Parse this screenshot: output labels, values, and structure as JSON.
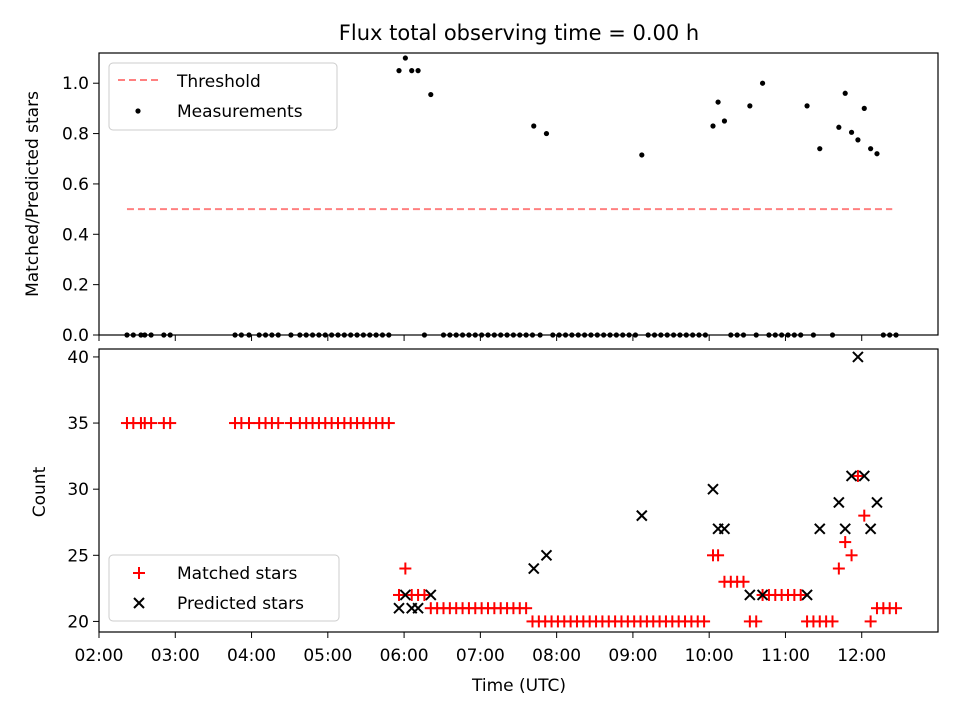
{
  "chart_data": [
    {
      "type": "scatter",
      "title": "Flux total observing time = 0.00 h",
      "ylabel": "Matched/Predicted stars",
      "xlabel": "",
      "xlim": [
        "02:00",
        "13:00"
      ],
      "ylim": [
        0,
        1.12
      ],
      "y_ticks": [
        "0.0",
        "0.2",
        "0.4",
        "0.6",
        "0.8",
        "1.0"
      ],
      "legend_position": "upper-left",
      "series": [
        {
          "name": "Threshold",
          "style": "dashed-line",
          "color": "#ff8080",
          "points": [
            [
              "02:22",
              0.5
            ],
            [
              "12:24",
              0.5
            ]
          ]
        },
        {
          "name": "Measurements",
          "style": "dot",
          "color": "#000000",
          "points": [
            [
              "02:22",
              0
            ],
            [
              "02:27",
              0
            ],
            [
              "02:33",
              0
            ],
            [
              "02:36",
              0
            ],
            [
              "02:41",
              0
            ],
            [
              "02:51",
              0
            ],
            [
              "02:56",
              0
            ],
            [
              "03:47",
              0
            ],
            [
              "03:52",
              0
            ],
            [
              "03:58",
              0
            ],
            [
              "04:06",
              0
            ],
            [
              "04:11",
              0
            ],
            [
              "04:16",
              0
            ],
            [
              "04:21",
              0
            ],
            [
              "04:31",
              0
            ],
            [
              "04:38",
              0
            ],
            [
              "04:43",
              0
            ],
            [
              "04:48",
              0
            ],
            [
              "04:53",
              0
            ],
            [
              "04:58",
              0
            ],
            [
              "05:03",
              0
            ],
            [
              "05:08",
              0
            ],
            [
              "05:13",
              0
            ],
            [
              "05:18",
              0
            ],
            [
              "05:23",
              0
            ],
            [
              "05:28",
              0
            ],
            [
              "05:33",
              0
            ],
            [
              "05:38",
              0
            ],
            [
              "05:43",
              0
            ],
            [
              "05:48",
              0
            ],
            [
              "05:56",
              1.05
            ],
            [
              "06:01",
              1.1
            ],
            [
              "06:06",
              1.05
            ],
            [
              "06:11",
              1.05
            ],
            [
              "06:21",
              0.955
            ],
            [
              "06:16",
              0
            ],
            [
              "06:31",
              0
            ],
            [
              "06:36",
              0
            ],
            [
              "06:41",
              0
            ],
            [
              "06:46",
              0
            ],
            [
              "06:51",
              0
            ],
            [
              "06:56",
              0
            ],
            [
              "07:01",
              0
            ],
            [
              "07:06",
              0
            ],
            [
              "07:11",
              0
            ],
            [
              "07:16",
              0
            ],
            [
              "07:21",
              0
            ],
            [
              "07:26",
              0
            ],
            [
              "07:31",
              0
            ],
            [
              "07:36",
              0
            ],
            [
              "07:41",
              0
            ],
            [
              "07:42",
              0.83
            ],
            [
              "07:52",
              0.8
            ],
            [
              "07:47",
              0
            ],
            [
              "07:57",
              0
            ],
            [
              "08:02",
              0
            ],
            [
              "08:07",
              0
            ],
            [
              "08:12",
              0
            ],
            [
              "08:17",
              0
            ],
            [
              "08:22",
              0
            ],
            [
              "08:27",
              0
            ],
            [
              "08:32",
              0
            ],
            [
              "08:37",
              0
            ],
            [
              "08:42",
              0
            ],
            [
              "08:47",
              0
            ],
            [
              "08:52",
              0
            ],
            [
              "08:57",
              0
            ],
            [
              "09:02",
              0
            ],
            [
              "09:07",
              0.715
            ],
            [
              "09:12",
              0
            ],
            [
              "09:17",
              0
            ],
            [
              "09:22",
              0
            ],
            [
              "09:27",
              0
            ],
            [
              "09:32",
              0
            ],
            [
              "09:37",
              0
            ],
            [
              "09:42",
              0
            ],
            [
              "09:47",
              0
            ],
            [
              "09:52",
              0
            ],
            [
              "09:57",
              0
            ],
            [
              "10:03",
              0.83
            ],
            [
              "10:07",
              0.925
            ],
            [
              "10:12",
              0.85
            ],
            [
              "10:17",
              0
            ],
            [
              "10:22",
              0
            ],
            [
              "10:27",
              0
            ],
            [
              "10:32",
              0.91
            ],
            [
              "10:37",
              0
            ],
            [
              "10:47",
              0
            ],
            [
              "10:52",
              0
            ],
            [
              "10:57",
              0
            ],
            [
              "11:02",
              0
            ],
            [
              "11:07",
              0
            ],
            [
              "11:12",
              0
            ],
            [
              "10:42",
              1.0
            ],
            [
              "11:17",
              0.91
            ],
            [
              "11:27",
              0.74
            ],
            [
              "11:42",
              0.825
            ],
            [
              "11:47",
              0.96
            ],
            [
              "11:52",
              0.805
            ],
            [
              "11:57",
              0.775
            ],
            [
              "12:02",
              0.9
            ],
            [
              "12:07",
              0.74
            ],
            [
              "12:12",
              0.72
            ],
            [
              "11:22",
              0
            ],
            [
              "11:37",
              0
            ],
            [
              "12:17",
              0
            ],
            [
              "12:22",
              0
            ],
            [
              "12:27",
              0
            ]
          ]
        }
      ]
    },
    {
      "type": "scatter",
      "title": "",
      "xlabel": "Time (UTC)",
      "ylabel": "Count",
      "xlim": [
        "02:00",
        "13:00"
      ],
      "ylim": [
        19.2,
        40.6
      ],
      "x_ticks": [
        "02:00",
        "03:00",
        "04:00",
        "05:00",
        "06:00",
        "07:00",
        "08:00",
        "09:00",
        "10:00",
        "11:00",
        "12:00"
      ],
      "y_ticks": [
        "20",
        "25",
        "30",
        "35",
        "40"
      ],
      "legend_position": "lower-left",
      "series": [
        {
          "name": "Matched stars",
          "marker": "+",
          "color": "#ff0000",
          "points": [
            [
              "02:22",
              35
            ],
            [
              "02:27",
              35
            ],
            [
              "02:33",
              35
            ],
            [
              "02:36",
              35
            ],
            [
              "02:41",
              35
            ],
            [
              "02:51",
              35
            ],
            [
              "02:56",
              35
            ],
            [
              "03:47",
              35
            ],
            [
              "03:52",
              35
            ],
            [
              "03:58",
              35
            ],
            [
              "04:06",
              35
            ],
            [
              "04:11",
              35
            ],
            [
              "04:16",
              35
            ],
            [
              "04:21",
              35
            ],
            [
              "04:31",
              35
            ],
            [
              "04:38",
              35
            ],
            [
              "04:43",
              35
            ],
            [
              "04:48",
              35
            ],
            [
              "04:53",
              35
            ],
            [
              "04:58",
              35
            ],
            [
              "05:03",
              35
            ],
            [
              "05:08",
              35
            ],
            [
              "05:13",
              35
            ],
            [
              "05:18",
              35
            ],
            [
              "05:23",
              35
            ],
            [
              "05:28",
              35
            ],
            [
              "05:33",
              35
            ],
            [
              "05:38",
              35
            ],
            [
              "05:43",
              35
            ],
            [
              "05:48",
              35
            ],
            [
              "05:56",
              22
            ],
            [
              "06:01",
              24
            ],
            [
              "06:06",
              22
            ],
            [
              "06:11",
              22
            ],
            [
              "06:16",
              22
            ],
            [
              "06:21",
              21
            ],
            [
              "06:26",
              21
            ],
            [
              "06:31",
              21
            ],
            [
              "06:36",
              21
            ],
            [
              "06:41",
              21
            ],
            [
              "06:46",
              21
            ],
            [
              "06:51",
              21
            ],
            [
              "06:56",
              21
            ],
            [
              "07:01",
              21
            ],
            [
              "07:06",
              21
            ],
            [
              "07:11",
              21
            ],
            [
              "07:16",
              21
            ],
            [
              "07:21",
              21
            ],
            [
              "07:26",
              21
            ],
            [
              "07:31",
              21
            ],
            [
              "07:36",
              21
            ],
            [
              "07:41",
              20
            ],
            [
              "07:46",
              20
            ],
            [
              "07:51",
              20
            ],
            [
              "07:56",
              20
            ],
            [
              "08:01",
              20
            ],
            [
              "08:06",
              20
            ],
            [
              "08:11",
              20
            ],
            [
              "08:16",
              20
            ],
            [
              "08:21",
              20
            ],
            [
              "08:26",
              20
            ],
            [
              "08:31",
              20
            ],
            [
              "08:36",
              20
            ],
            [
              "08:41",
              20
            ],
            [
              "08:46",
              20
            ],
            [
              "08:51",
              20
            ],
            [
              "08:56",
              20
            ],
            [
              "09:01",
              20
            ],
            [
              "09:06",
              20
            ],
            [
              "09:11",
              20
            ],
            [
              "09:16",
              20
            ],
            [
              "09:21",
              20
            ],
            [
              "09:26",
              20
            ],
            [
              "09:31",
              20
            ],
            [
              "09:36",
              20
            ],
            [
              "09:41",
              20
            ],
            [
              "09:46",
              20
            ],
            [
              "09:51",
              20
            ],
            [
              "09:56",
              20
            ],
            [
              "10:03",
              25
            ],
            [
              "10:07",
              25
            ],
            [
              "10:12",
              23
            ],
            [
              "10:17",
              23
            ],
            [
              "10:22",
              23
            ],
            [
              "10:27",
              23
            ],
            [
              "10:32",
              20
            ],
            [
              "10:37",
              20
            ],
            [
              "10:42",
              22
            ],
            [
              "10:47",
              22
            ],
            [
              "10:52",
              22
            ],
            [
              "10:57",
              22
            ],
            [
              "11:02",
              22
            ],
            [
              "11:07",
              22
            ],
            [
              "11:12",
              22
            ],
            [
              "11:17",
              20
            ],
            [
              "11:22",
              20
            ],
            [
              "11:27",
              20
            ],
            [
              "11:32",
              20
            ],
            [
              "11:37",
              20
            ],
            [
              "11:42",
              24
            ],
            [
              "11:47",
              26
            ],
            [
              "11:52",
              25
            ],
            [
              "11:57",
              31
            ],
            [
              "12:02",
              28
            ],
            [
              "12:07",
              20
            ],
            [
              "12:12",
              21
            ],
            [
              "12:17",
              21
            ],
            [
              "12:22",
              21
            ],
            [
              "12:27",
              21
            ]
          ]
        },
        {
          "name": "Predicted stars",
          "marker": "x",
          "color": "#000000",
          "points": [
            [
              "05:56",
              21
            ],
            [
              "06:01",
              22
            ],
            [
              "06:06",
              21
            ],
            [
              "06:11",
              21
            ],
            [
              "06:21",
              22
            ],
            [
              "07:42",
              24
            ],
            [
              "07:52",
              25
            ],
            [
              "09:07",
              28
            ],
            [
              "10:03",
              30
            ],
            [
              "10:07",
              27
            ],
            [
              "10:12",
              27
            ],
            [
              "10:32",
              22
            ],
            [
              "10:42",
              22
            ],
            [
              "11:17",
              22
            ],
            [
              "11:27",
              27
            ],
            [
              "11:42",
              29
            ],
            [
              "11:47",
              27
            ],
            [
              "11:52",
              31
            ],
            [
              "11:57",
              40
            ],
            [
              "12:02",
              31
            ],
            [
              "12:07",
              27
            ],
            [
              "12:12",
              29
            ]
          ]
        }
      ]
    }
  ]
}
